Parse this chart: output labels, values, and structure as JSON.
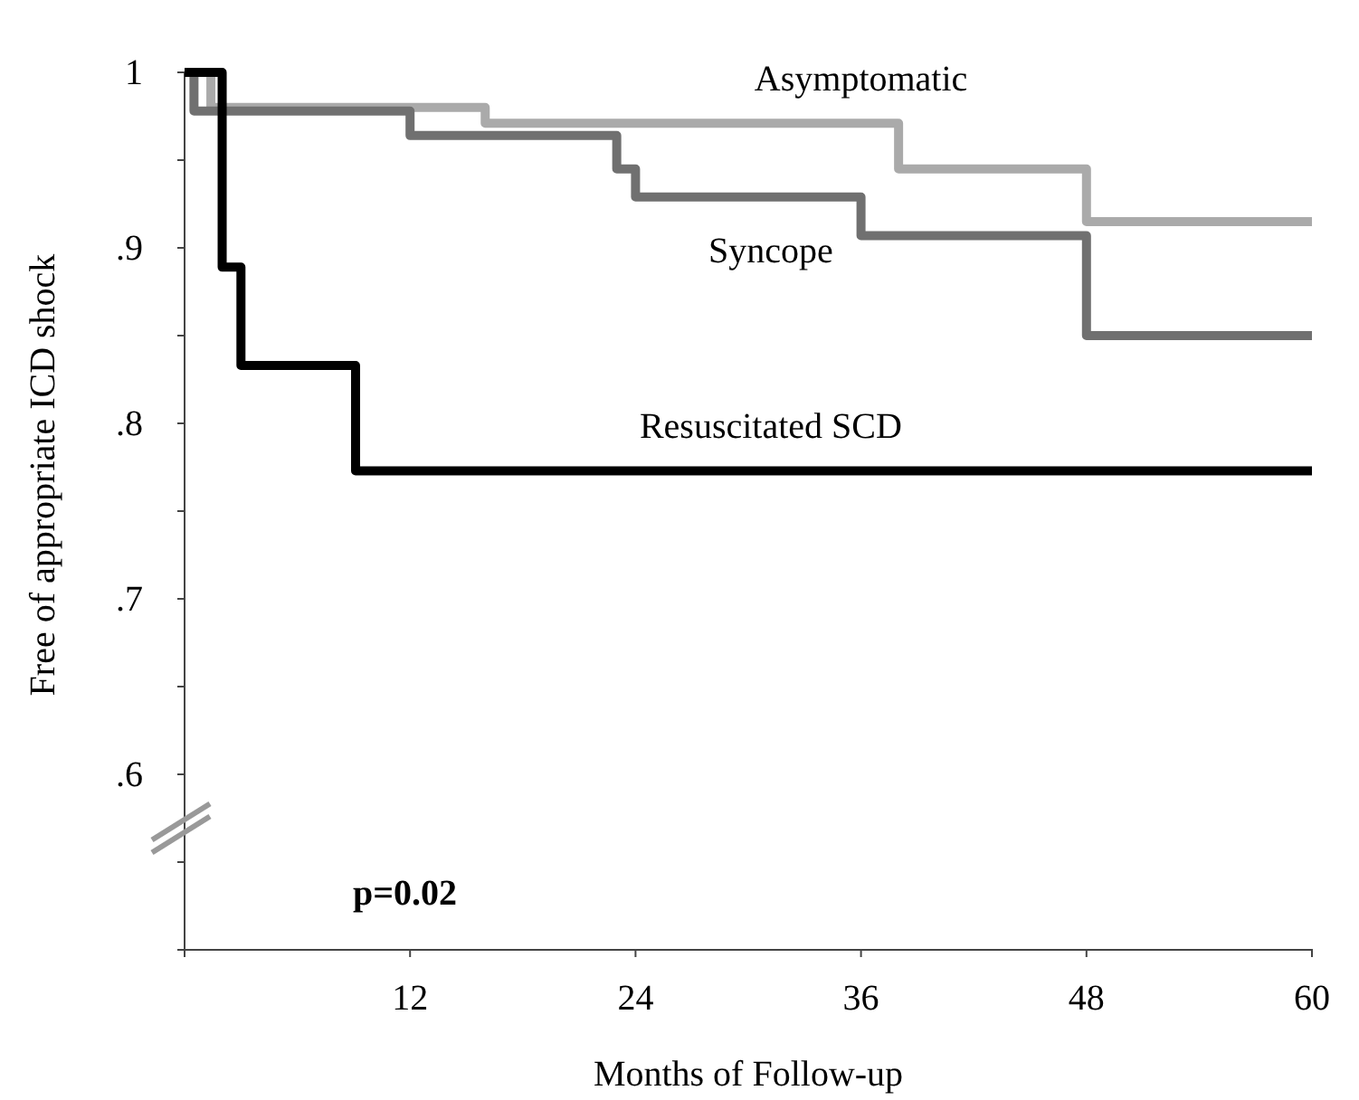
{
  "chart_data": {
    "type": "step",
    "xlabel": "Months of Follow-up",
    "ylabel": "Free of appropriate ICD shock",
    "xlim": [
      0,
      60
    ],
    "ylim": [
      0.5,
      1
    ],
    "xticks": [
      {
        "value": 0,
        "label": null
      },
      12,
      24,
      36,
      48,
      60
    ],
    "yticks": [
      {
        "value": 0.5,
        "label": null
      },
      {
        "value": 0.55,
        "label": null
      },
      {
        "value": 0.6,
        "label": ".6"
      },
      {
        "value": 0.65,
        "label": null
      },
      {
        "value": 0.7,
        "label": ".7"
      },
      {
        "value": 0.75,
        "label": null
      },
      {
        "value": 0.8,
        "label": ".8"
      },
      {
        "value": 0.85,
        "label": null
      },
      {
        "value": 0.9,
        "label": ".9"
      },
      {
        "value": 0.95,
        "label": null
      },
      {
        "value": 1,
        "label": "1"
      }
    ],
    "series": [
      {
        "name": "Asymptomatic",
        "color": "#aaaaaa",
        "x": [
          0,
          1.4,
          16,
          38,
          48,
          60
        ],
        "values": [
          1,
          0.98,
          0.971,
          0.945,
          0.915,
          0.915
        ]
      },
      {
        "name": "Syncope",
        "color": "#707070",
        "x": [
          0,
          0.5,
          12,
          23,
          24,
          36,
          48,
          60
        ],
        "values": [
          1,
          0.978,
          0.964,
          0.945,
          0.929,
          0.907,
          0.85,
          0.85
        ]
      },
      {
        "name": "Resuscitated SCD",
        "color": "#000000",
        "x": [
          0,
          2,
          3,
          9.1,
          60
        ],
        "values": [
          1,
          0.889,
          0.833,
          0.773,
          0.773
        ]
      }
    ],
    "annotations": [
      "p=0.02"
    ],
    "grid": false,
    "legend": false,
    "line_style": "solid",
    "marker": "none"
  }
}
